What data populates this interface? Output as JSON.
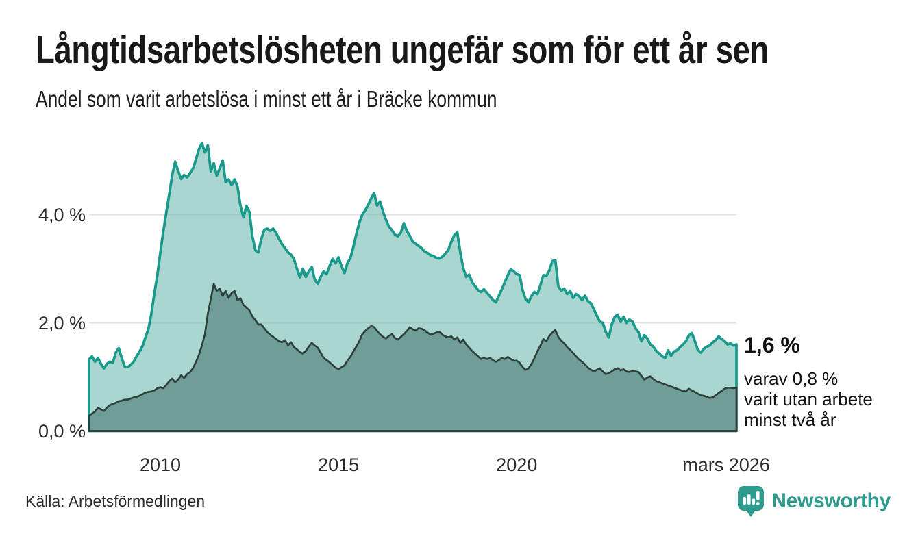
{
  "chart_data": {
    "type": "area",
    "title": "Långtidsarbetslösheten ungefär som för ett år sen",
    "subtitle": "Andel som varit arbetslösa i minst ett år i Bräcke kommun",
    "unit": "%",
    "x_start_year": 2008.0,
    "x_end_year": 2026.1667,
    "frequency": "monthly",
    "grid": "horizontal-only",
    "ylim": [
      0,
      5.45
    ],
    "y_ticks": [
      {
        "label": "0,0 %",
        "value": 0
      },
      {
        "label": "2,0 %",
        "value": 2
      },
      {
        "label": "4,0 %",
        "value": 4
      }
    ],
    "x_ticks": [
      {
        "label": "2010",
        "year": 2010.0
      },
      {
        "label": "2015",
        "year": 2015.0
      },
      {
        "label": "2020",
        "year": 2020.0
      },
      {
        "label": "mars 2026",
        "year": 2026.1667
      }
    ],
    "colors": {
      "grid": "#e2e2e6",
      "axis_text": "#2b2b2b",
      "series1_line": "#1a9a8c",
      "series1_fill": "rgba(112,188,175,0.6)",
      "series2_line": "#2f3f3b",
      "series2_fill": "#6f9d97",
      "brand_teal": "#2e9b8e"
    },
    "series": [
      {
        "name": "Arbetslösa minst ett år",
        "end_value": "1,6 %",
        "values": [
          1.32,
          1.38,
          1.28,
          1.35,
          1.24,
          1.16,
          1.24,
          1.28,
          1.26,
          1.45,
          1.53,
          1.35,
          1.19,
          1.18,
          1.22,
          1.28,
          1.38,
          1.47,
          1.57,
          1.73,
          1.89,
          2.17,
          2.55,
          2.88,
          3.29,
          3.69,
          4.03,
          4.37,
          4.73,
          4.98,
          4.81,
          4.66,
          4.73,
          4.69,
          4.77,
          4.85,
          5.02,
          5.21,
          5.32,
          5.15,
          5.28,
          4.8,
          4.95,
          4.72,
          4.85,
          5.0,
          4.6,
          4.65,
          4.55,
          4.65,
          4.52,
          4.16,
          3.95,
          4.16,
          4.05,
          3.6,
          3.34,
          3.3,
          3.55,
          3.72,
          3.74,
          3.7,
          3.74,
          3.66,
          3.55,
          3.45,
          3.38,
          3.3,
          3.26,
          3.18,
          3.0,
          2.84,
          3.0,
          2.85,
          2.95,
          3.03,
          2.8,
          2.72,
          2.85,
          2.95,
          2.9,
          3.05,
          3.18,
          3.1,
          3.21,
          3.05,
          2.92,
          3.1,
          3.2,
          3.4,
          3.64,
          3.85,
          4.0,
          4.08,
          4.18,
          4.3,
          4.4,
          4.17,
          4.24,
          4.05,
          3.9,
          3.78,
          3.71,
          3.63,
          3.6,
          3.67,
          3.84,
          3.7,
          3.61,
          3.5,
          3.46,
          3.42,
          3.38,
          3.32,
          3.29,
          3.25,
          3.23,
          3.2,
          3.19,
          3.22,
          3.28,
          3.35,
          3.5,
          3.62,
          3.67,
          3.3,
          3.01,
          2.85,
          2.89,
          2.75,
          2.68,
          2.6,
          2.57,
          2.62,
          2.55,
          2.49,
          2.42,
          2.38,
          2.5,
          2.62,
          2.75,
          2.88,
          2.99,
          2.95,
          2.9,
          2.88,
          2.6,
          2.44,
          2.38,
          2.5,
          2.57,
          2.53,
          2.7,
          2.88,
          2.87,
          2.97,
          3.14,
          3.16,
          2.68,
          2.59,
          2.63,
          2.53,
          2.59,
          2.46,
          2.53,
          2.49,
          2.42,
          2.5,
          2.4,
          2.36,
          2.25,
          2.13,
          2.02,
          2.0,
          1.83,
          1.73,
          1.97,
          2.11,
          2.15,
          2.02,
          2.11,
          2.0,
          2.06,
          2.02,
          1.9,
          1.83,
          1.66,
          1.77,
          1.71,
          1.6,
          1.56,
          1.48,
          1.43,
          1.38,
          1.35,
          1.49,
          1.39,
          1.47,
          1.49,
          1.55,
          1.6,
          1.66,
          1.77,
          1.81,
          1.66,
          1.5,
          1.45,
          1.52,
          1.56,
          1.58,
          1.64,
          1.68,
          1.75,
          1.7,
          1.66,
          1.6,
          1.62,
          1.58,
          1.6
        ]
      },
      {
        "name": "Arbetslösa minst två år",
        "end_value": "0,8 %",
        "values": [
          0.28,
          0.32,
          0.36,
          0.43,
          0.4,
          0.37,
          0.43,
          0.48,
          0.5,
          0.52,
          0.55,
          0.56,
          0.58,
          0.58,
          0.6,
          0.62,
          0.63,
          0.65,
          0.68,
          0.71,
          0.72,
          0.73,
          0.75,
          0.79,
          0.81,
          0.79,
          0.85,
          0.92,
          0.97,
          0.9,
          0.95,
          1.03,
          0.98,
          1.05,
          1.09,
          1.16,
          1.28,
          1.41,
          1.58,
          1.79,
          2.17,
          2.44,
          2.72,
          2.59,
          2.63,
          2.5,
          2.59,
          2.46,
          2.55,
          2.59,
          2.42,
          2.45,
          2.33,
          2.28,
          2.23,
          2.12,
          2.05,
          1.97,
          1.97,
          1.9,
          1.83,
          1.78,
          1.74,
          1.7,
          1.66,
          1.64,
          1.68,
          1.58,
          1.64,
          1.55,
          1.51,
          1.46,
          1.43,
          1.48,
          1.56,
          1.63,
          1.58,
          1.54,
          1.45,
          1.35,
          1.31,
          1.27,
          1.22,
          1.17,
          1.14,
          1.18,
          1.21,
          1.3,
          1.37,
          1.47,
          1.56,
          1.66,
          1.79,
          1.85,
          1.9,
          1.94,
          1.92,
          1.85,
          1.79,
          1.74,
          1.71,
          1.76,
          1.79,
          1.72,
          1.69,
          1.74,
          1.79,
          1.85,
          1.92,
          1.88,
          1.86,
          1.9,
          1.89,
          1.86,
          1.82,
          1.78,
          1.8,
          1.82,
          1.84,
          1.78,
          1.75,
          1.73,
          1.75,
          1.69,
          1.73,
          1.63,
          1.69,
          1.6,
          1.54,
          1.48,
          1.43,
          1.38,
          1.33,
          1.35,
          1.33,
          1.35,
          1.31,
          1.28,
          1.31,
          1.35,
          1.33,
          1.37,
          1.33,
          1.3,
          1.3,
          1.26,
          1.18,
          1.13,
          1.16,
          1.24,
          1.35,
          1.48,
          1.58,
          1.7,
          1.66,
          1.76,
          1.82,
          1.87,
          1.74,
          1.67,
          1.62,
          1.55,
          1.5,
          1.44,
          1.38,
          1.32,
          1.28,
          1.23,
          1.17,
          1.13,
          1.1,
          1.13,
          1.16,
          1.1,
          1.05,
          1.07,
          1.1,
          1.14,
          1.16,
          1.12,
          1.14,
          1.1,
          1.09,
          1.11,
          1.1,
          1.09,
          1.02,
          0.95,
          0.99,
          1.01,
          0.96,
          0.92,
          0.9,
          0.88,
          0.86,
          0.84,
          0.82,
          0.8,
          0.78,
          0.76,
          0.74,
          0.73,
          0.78,
          0.75,
          0.72,
          0.69,
          0.66,
          0.65,
          0.63,
          0.61,
          0.62,
          0.66,
          0.7,
          0.74,
          0.78,
          0.8,
          0.8,
          0.79,
          0.8
        ]
      }
    ],
    "annotation": {
      "value_label": "1,6 %",
      "sub_lines": [
        "varav 0,8 %",
        "varit utan arbete",
        "minst två år"
      ]
    }
  },
  "footer": {
    "source": "Källa: Arbetsförmedlingen",
    "brand": "Newsworthy"
  }
}
